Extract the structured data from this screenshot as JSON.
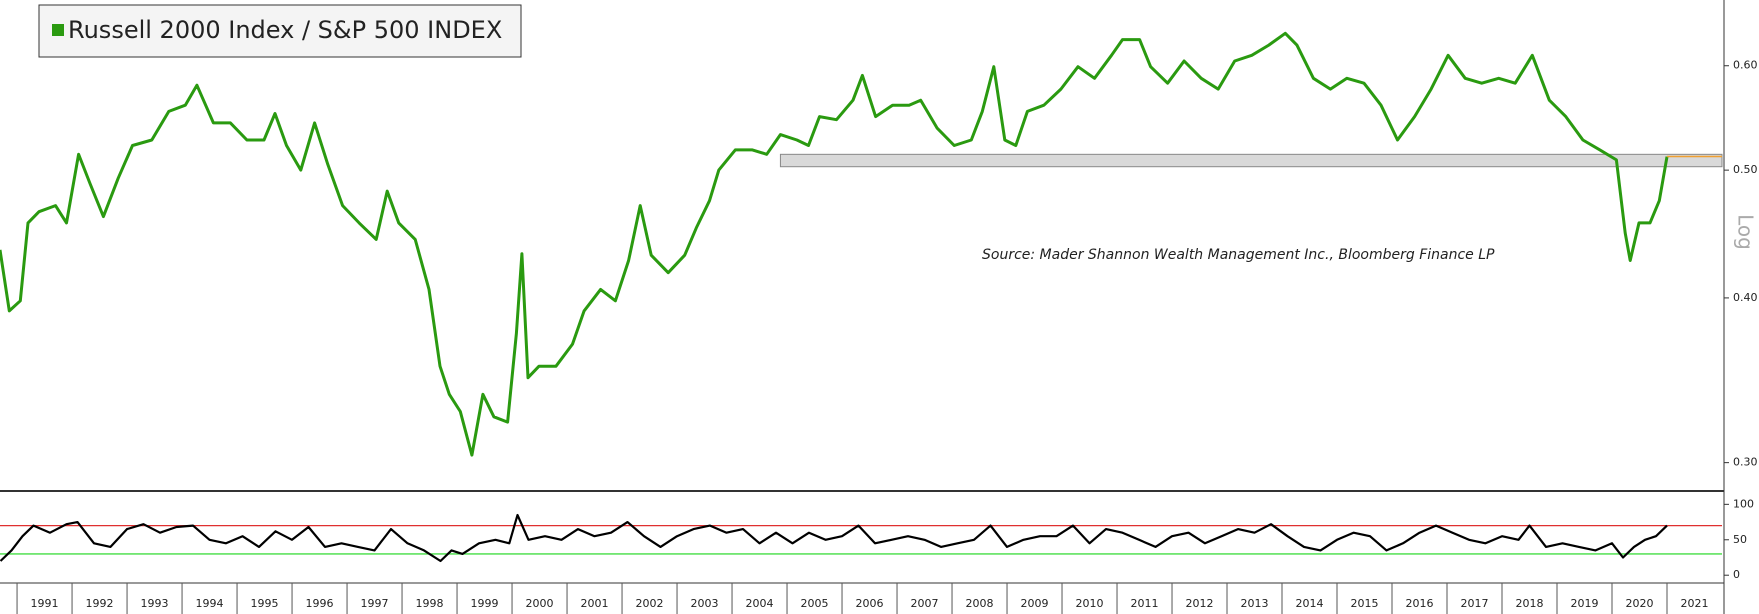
{
  "chart_data": [
    {
      "type": "line",
      "log_scale": true,
      "annotation": "Source: Mader Shannon Wealth Management Inc., Bloomberg Finance LP",
      "yaxis_label": "Log",
      "legend": "upper left",
      "x": [
        1990.69,
        1990.86,
        1991.06,
        1991.2,
        1991.4,
        1991.7,
        1991.9,
        1992.12,
        1992.33,
        1992.57,
        1992.84,
        1993.1,
        1993.45,
        1993.76,
        1994.06,
        1994.27,
        1994.57,
        1994.88,
        1995.18,
        1995.49,
        1995.69,
        1995.9,
        1996.16,
        1996.41,
        1996.65,
        1996.92,
        1997.22,
        1997.53,
        1997.73,
        1997.94,
        1998.24,
        1998.49,
        1998.69,
        1998.86,
        1999.06,
        1999.27,
        1999.47,
        1999.67,
        1999.92,
        2000.08,
        2000.18,
        2000.29,
        2000.49,
        2000.8,
        2001.1,
        2001.31,
        2001.61,
        2001.88,
        2002.12,
        2002.33,
        2002.53,
        2002.84,
        2003.14,
        2003.35,
        2003.59,
        2003.76,
        2004.06,
        2004.37,
        2004.63,
        2004.88,
        2005.18,
        2005.39,
        2005.59,
        2005.9,
        2006.2,
        2006.37,
        2006.61,
        2006.92,
        2007.22,
        2007.43,
        2007.73,
        2008.04,
        2008.35,
        2008.55,
        2008.76,
        2008.96,
        2009.16,
        2009.37,
        2009.67,
        2009.98,
        2010.29,
        2010.59,
        2010.9,
        2011.1,
        2011.41,
        2011.61,
        2011.92,
        2012.22,
        2012.53,
        2012.84,
        2013.14,
        2013.45,
        2013.76,
        2014.06,
        2014.27,
        2014.57,
        2014.88,
        2015.18,
        2015.49,
        2015.8,
        2016.1,
        2016.41,
        2016.71,
        2017.02,
        2017.33,
        2017.63,
        2017.94,
        2018.24,
        2018.55,
        2018.86,
        2019.16,
        2019.47,
        2019.78,
        2020.08,
        2020.24,
        2020.33,
        2020.49,
        2020.69,
        2020.86,
        2021.0
      ],
      "series": [
        {
          "name": "Russell 2000 Index / S&P 500 INDEX",
          "color": "#2a9a10",
          "values": [
            0.435,
            0.391,
            0.398,
            0.456,
            0.465,
            0.47,
            0.456,
            0.514,
            0.488,
            0.461,
            0.493,
            0.522,
            0.527,
            0.554,
            0.56,
            0.58,
            0.543,
            0.543,
            0.527,
            0.527,
            0.552,
            0.522,
            0.5,
            0.543,
            0.505,
            0.47,
            0.456,
            0.443,
            0.482,
            0.456,
            0.443,
            0.406,
            0.355,
            0.338,
            0.328,
            0.304,
            0.338,
            0.325,
            0.322,
            0.376,
            0.432,
            0.348,
            0.355,
            0.355,
            0.369,
            0.391,
            0.406,
            0.398,
            0.427,
            0.47,
            0.431,
            0.418,
            0.431,
            0.452,
            0.474,
            0.5,
            0.518,
            0.518,
            0.514,
            0.532,
            0.527,
            0.522,
            0.549,
            0.546,
            0.565,
            0.59,
            0.549,
            0.56,
            0.56,
            0.565,
            0.538,
            0.522,
            0.527,
            0.554,
            0.599,
            0.527,
            0.522,
            0.554,
            0.56,
            0.576,
            0.599,
            0.587,
            0.611,
            0.628,
            0.628,
            0.599,
            0.582,
            0.605,
            0.587,
            0.576,
            0.605,
            0.611,
            0.622,
            0.635,
            0.622,
            0.587,
            0.576,
            0.587,
            0.582,
            0.56,
            0.527,
            0.549,
            0.576,
            0.611,
            0.587,
            0.582,
            0.587,
            0.582,
            0.611,
            0.565,
            0.549,
            0.527,
            0.518,
            0.509,
            0.448,
            0.427,
            0.456,
            0.456,
            0.474,
            0.512
          ]
        }
      ],
      "highlight_band": {
        "x0": 2004.88,
        "range": [
          0.503,
          0.514
        ],
        "color": "#d9d9d9"
      },
      "last_value_color": "#f0a030",
      "xlim": [
        1990.69,
        2022.0
      ],
      "ylim": [
        0.286,
        0.673
      ],
      "yticks": [
        {
          "value": 0.3,
          "label": "0.30"
        },
        {
          "value": 0.4,
          "label": "0.40"
        },
        {
          "value": 0.5,
          "label": "0.50"
        },
        {
          "value": 0.6,
          "label": "0.60"
        }
      ]
    },
    {
      "type": "line",
      "x": [
        1990.7,
        1990.9,
        1991.1,
        1991.3,
        1991.6,
        1991.9,
        1992.1,
        1992.4,
        1992.7,
        1993.0,
        1993.3,
        1993.6,
        1993.9,
        1994.2,
        1994.5,
        1994.8,
        1995.1,
        1995.4,
        1995.7,
        1996.0,
        1996.3,
        1996.6,
        1996.9,
        1997.2,
        1997.5,
        1997.8,
        1998.1,
        1998.4,
        1998.7,
        1998.9,
        1999.1,
        1999.4,
        1999.7,
        1999.95,
        2000.1,
        2000.3,
        2000.6,
        2000.9,
        2001.2,
        2001.5,
        2001.8,
        2002.1,
        2002.4,
        2002.7,
        2003.0,
        2003.3,
        2003.6,
        2003.9,
        2004.2,
        2004.5,
        2004.8,
        2005.1,
        2005.4,
        2005.7,
        2006.0,
        2006.3,
        2006.6,
        2006.9,
        2007.2,
        2007.5,
        2007.8,
        2008.1,
        2008.4,
        2008.7,
        2009.0,
        2009.3,
        2009.6,
        2009.9,
        2010.2,
        2010.5,
        2010.8,
        2011.1,
        2011.4,
        2011.7,
        2012.0,
        2012.3,
        2012.6,
        2012.9,
        2013.2,
        2013.5,
        2013.8,
        2014.1,
        2014.4,
        2014.7,
        2015.0,
        2015.3,
        2015.6,
        2015.9,
        2016.2,
        2016.5,
        2016.8,
        2017.1,
        2017.4,
        2017.7,
        2018.0,
        2018.3,
        2018.5,
        2018.8,
        2019.1,
        2019.4,
        2019.7,
        2020.0,
        2020.2,
        2020.4,
        2020.6,
        2020.8,
        2021.0
      ],
      "series": [
        {
          "color": "#000000",
          "values": [
            20,
            35,
            55,
            70,
            60,
            72,
            75,
            45,
            40,
            65,
            72,
            60,
            68,
            70,
            50,
            45,
            55,
            40,
            62,
            50,
            68,
            40,
            45,
            40,
            35,
            65,
            45,
            35,
            20,
            35,
            30,
            45,
            50,
            45,
            85,
            50,
            55,
            50,
            65,
            55,
            60,
            75,
            55,
            40,
            55,
            65,
            70,
            60,
            65,
            45,
            60,
            45,
            60,
            50,
            55,
            70,
            45,
            50,
            55,
            50,
            40,
            45,
            50,
            70,
            40,
            50,
            55,
            55,
            70,
            45,
            65,
            60,
            50,
            40,
            55,
            60,
            45,
            55,
            65,
            60,
            72,
            55,
            40,
            35,
            50,
            60,
            55,
            35,
            45,
            60,
            70,
            60,
            50,
            45,
            55,
            50,
            70,
            40,
            45,
            40,
            35,
            45,
            25,
            40,
            50,
            55,
            70
          ]
        }
      ],
      "reference_lines": [
        {
          "value": 70,
          "color": "#e03030"
        },
        {
          "value": 30,
          "color": "#44dd44"
        }
      ],
      "xlim": [
        1990.69,
        2022.0
      ],
      "ylim": [
        -11,
        116
      ],
      "yticks": [
        0,
        50,
        100
      ],
      "xticks": [
        1991,
        1992,
        1993,
        1994,
        1995,
        1996,
        1997,
        1998,
        1999,
        2000,
        2001,
        2002,
        2003,
        2004,
        2005,
        2006,
        2007,
        2008,
        2009,
        2010,
        2011,
        2012,
        2013,
        2014,
        2015,
        2016,
        2017,
        2018,
        2019,
        2020,
        2021
      ]
    }
  ]
}
